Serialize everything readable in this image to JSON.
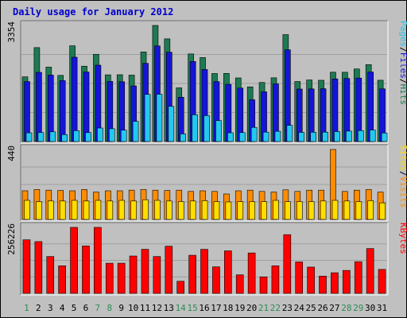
{
  "chart_data": {
    "type": "bar",
    "title": "Daily usage for January 2012",
    "categories": [
      "1",
      "2",
      "3",
      "4",
      "5",
      "6",
      "7",
      "8",
      "9",
      "10",
      "11",
      "12",
      "13",
      "14",
      "15",
      "16",
      "17",
      "18",
      "19",
      "20",
      "21",
      "22",
      "23",
      "24",
      "25",
      "26",
      "27",
      "28",
      "29",
      "30",
      "31"
    ],
    "weekend_categories": [
      "1",
      "7",
      "8",
      "14",
      "15",
      "21",
      "22",
      "28",
      "29"
    ],
    "panels": [
      {
        "id": "top",
        "ymax": 3354,
        "ymax_label": "3354",
        "series": [
          {
            "name": "Hits",
            "color": "#1e7a52",
            "values": [
              1869,
              2714,
              2150,
              1911,
              2766,
              2177,
              2521,
              1927,
              1930,
              1919,
              2588,
              3354,
              2967,
              1551,
              2531,
              2425,
              1965,
              1968,
              1838,
              1579,
              1706,
              1841,
              3089,
              1734,
              1779,
              1770,
              2003,
              2001,
              2097,
              2222,
              1771
            ]
          },
          {
            "name": "Files",
            "color": "#1515d8",
            "values": [
              1732,
              1998,
              1919,
              1760,
              2436,
              2008,
              2206,
              1737,
              1728,
              1606,
              2259,
              2762,
              2581,
              1280,
              2313,
              2080,
              1732,
              1652,
              1544,
              1206,
              1436,
              1665,
              2650,
              1516,
              1520,
              1525,
              1808,
              1821,
              1834,
              2008,
              1522
            ]
          },
          {
            "name": "Pages",
            "color": "#22c8f0",
            "values": [
              251,
              258,
              281,
              200,
              314,
              258,
              390,
              370,
              328,
              582,
              1362,
              1366,
              1016,
              220,
              773,
              749,
              606,
              252,
              258,
              408,
              271,
              295,
              467,
              263,
              267,
              270,
              287,
              301,
              315,
              332,
              246
            ]
          }
        ],
        "labels": [
          "Pages",
          "/",
          "Files",
          "/",
          "Hits"
        ],
        "label_colors": [
          "#22c8f0",
          "#000000",
          "#1515d8",
          "#000000",
          "#1e7a52"
        ]
      },
      {
        "id": "mid",
        "ymax": 440,
        "ymax_label": "440",
        "series": [
          {
            "name": "Visits",
            "color": "#ff8c00",
            "values": [
              180,
              188,
              184,
              182,
              180,
              188,
              172,
              180,
              180,
              184,
              188,
              184,
              182,
              184,
              176,
              180,
              176,
              160,
              180,
              184,
              176,
              172,
              186,
              176,
              184,
              184,
              440,
              176,
              184,
              188,
              172
            ]
          },
          {
            "name": "Sites",
            "color": "#ffdd00",
            "values": [
              120,
              112,
              116,
              116,
              120,
              116,
              120,
              116,
              120,
              116,
              124,
              120,
              116,
              112,
              116,
              118,
              112,
              110,
              112,
              112,
              112,
              120,
              112,
              112,
              112,
              116,
              120,
              116,
              112,
              118,
              104
            ]
          }
        ],
        "labels": [
          "Sites",
          "/",
          "Visits"
        ],
        "label_colors": [
          "#ffdd00",
          "#000000",
          "#ff8c00"
        ]
      },
      {
        "id": "bottom",
        "ymax": 256226,
        "ymax_label": "256226",
        "series": [
          {
            "name": "KBytes",
            "color": "#ff0000",
            "values": [
              208000,
              201000,
              143000,
              107000,
              256226,
              184000,
              256226,
              117000,
              117000,
              145000,
              171000,
              143000,
              183000,
              47000,
              148000,
              171000,
              103000,
              165000,
              72000,
              157000,
              64000,
              107000,
              228000,
              122000,
              102000,
              67000,
              80000,
              89000,
              123000,
              174000,
              93000
            ]
          }
        ],
        "labels": [
          "KBytes"
        ],
        "label_colors": [
          "#ff0000"
        ]
      }
    ]
  }
}
